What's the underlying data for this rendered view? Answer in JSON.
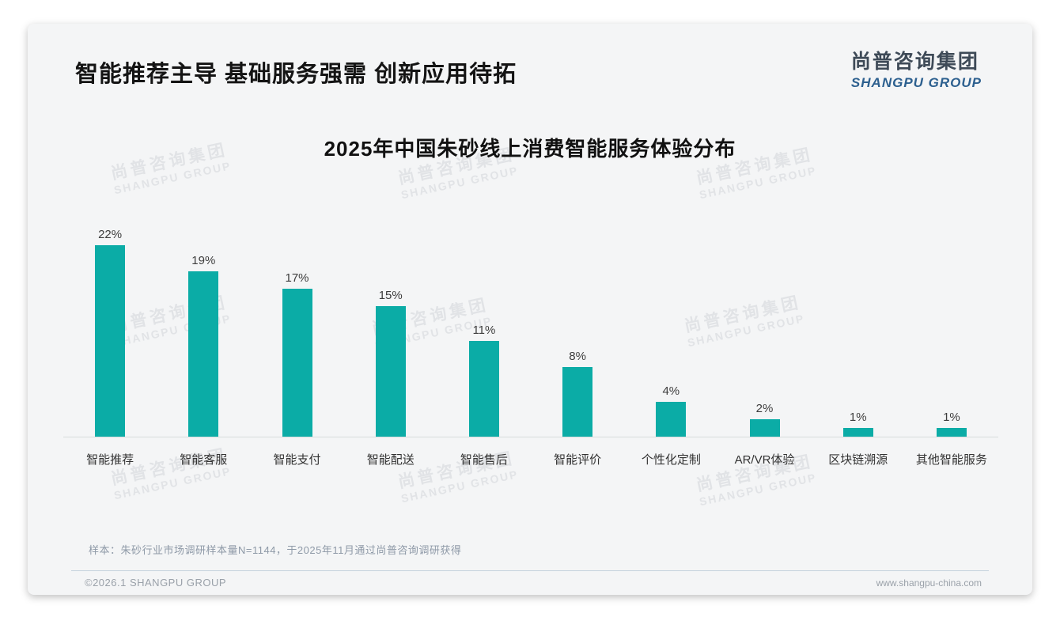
{
  "page": {
    "header_title": "智能推荐主导 基础服务强需 创新应用待拓",
    "logo": {
      "cn": "尚普咨询集团",
      "en": "SHANGPU GROUP"
    },
    "watermark": {
      "cn": "尚普咨询集团",
      "en": "SHANGPU GROUP"
    },
    "note": "样本：朱砂行业市场调研样本量N=1144，于2025年11月通过尚普咨询调研获得",
    "footer": {
      "left": "©2026.1 SHANGPU GROUP",
      "right": "www.shangpu-china.com"
    }
  },
  "colors": {
    "bar": "#0BACA6",
    "card_background": "#f4f5f6",
    "logo_blue": "#2d608f",
    "axis_line": "#d8dcdc"
  },
  "chart_data": {
    "type": "bar",
    "title": "2025年中国朱砂线上消费智能服务体验分布",
    "categories": [
      "智能推荐",
      "智能客服",
      "智能支付",
      "智能配送",
      "智能售后",
      "智能评价",
      "个性化定制",
      "AR/VR体验",
      "区块链溯源",
      "其他智能服务"
    ],
    "values": [
      22,
      19,
      17,
      15,
      11,
      8,
      4,
      2,
      1,
      1
    ],
    "unit": "%",
    "xlabel": "",
    "ylabel": "",
    "ylim": [
      0,
      24
    ],
    "grid": false,
    "legend": false,
    "data_labels": true
  }
}
